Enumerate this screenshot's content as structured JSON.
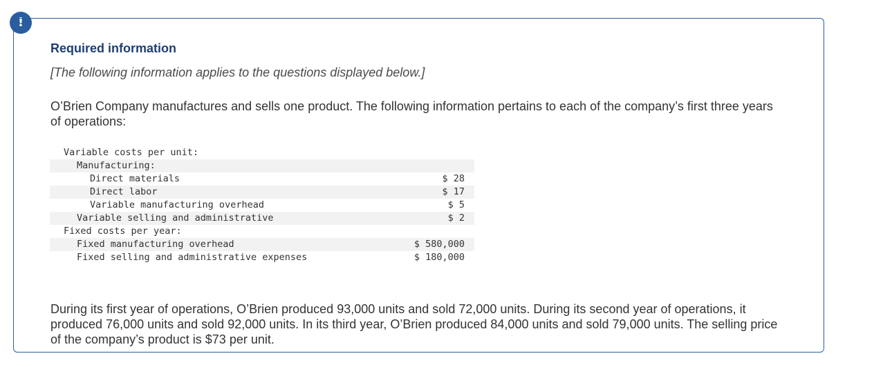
{
  "alert_icon": "!",
  "heading": "Required information",
  "note": "[The following information applies to the questions displayed below.]",
  "intro": "O’Brien Company manufactures and sells one product. The following information pertains to each of the company’s first three years of operations:",
  "table": {
    "variable_header": "Variable costs per unit:",
    "manufacturing_header": "Manufacturing:",
    "direct_materials": {
      "label": "Direct materials",
      "value": "$ 28"
    },
    "direct_labor": {
      "label": "Direct labor",
      "value": "$ 17"
    },
    "variable_overhead": {
      "label": "Variable manufacturing overhead",
      "value": "$ 5"
    },
    "variable_selling": {
      "label": "Variable selling and administrative",
      "value": "$ 2"
    },
    "fixed_header": "Fixed costs per year:",
    "fixed_overhead": {
      "label": "Fixed manufacturing overhead",
      "value": "$ 580,000"
    },
    "fixed_selling": {
      "label": "Fixed selling and administrative expenses",
      "value": "$ 180,000"
    }
  },
  "outro": "During its first year of operations, O’Brien produced 93,000 units and sold 72,000 units. During its second year of operations, it produced 76,000 units and sold 92,000 units. In its third year, O’Brien produced 84,000 units and sold 79,000 units. The selling price of the company’s product is $73 per unit."
}
